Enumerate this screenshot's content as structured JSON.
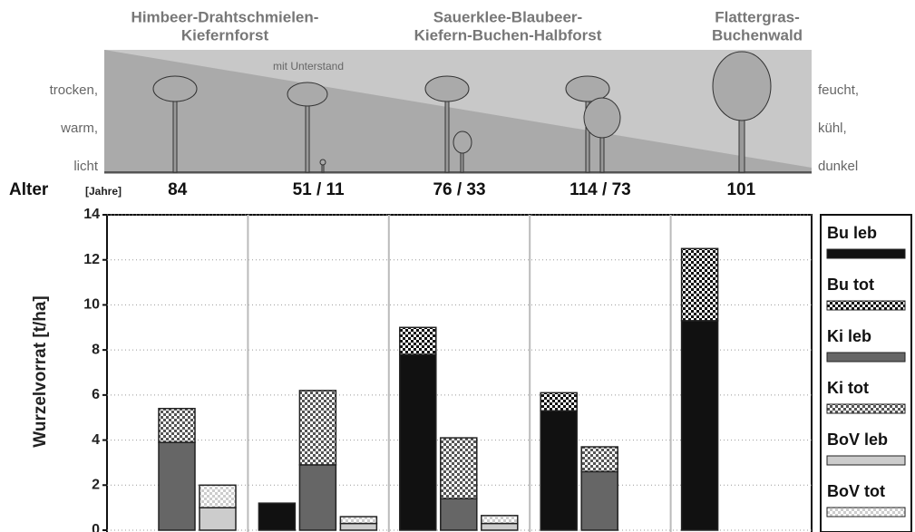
{
  "chart_data": {
    "type": "stacked-group-bar",
    "header": {
      "stands": [
        [
          "Himbeer-Drahtschmielen-",
          "Kiefernforst"
        ],
        [
          "Sauerklee-Blaubeer-",
          "Kiefern-Buchen-Halbforst"
        ],
        [
          "Flattergras-",
          "Buchenwald"
        ]
      ],
      "left_labels": [
        "trocken,",
        "warm,",
        "licht"
      ],
      "right_labels": [
        "feucht,",
        "kühl,",
        "dunkel"
      ],
      "annotation": "mit Unterstand",
      "age_label": "Alter",
      "age_unit": "[Jahre]"
    },
    "y_label": "Wurzelvorrat [t/ha]",
    "categories": [
      "84",
      "51 / 11",
      "76 / 33",
      "114 / 73",
      "101"
    ],
    "series": [
      {
        "name": "Bu leb",
        "color": "#111111",
        "values": [
          null,
          1.2,
          7.8,
          5.3,
          9.3
        ]
      },
      {
        "name": "Bu tot",
        "color": "#111111",
        "pattern": "checker",
        "values": [
          null,
          null,
          1.2,
          0.8,
          3.2
        ]
      },
      {
        "name": "Ki leb",
        "color": "#666666",
        "values": [
          3.9,
          2.9,
          1.4,
          2.6,
          null
        ]
      },
      {
        "name": "Ki tot",
        "color": "#555555",
        "pattern": "checker",
        "values": [
          1.5,
          3.3,
          2.7,
          1.1,
          null
        ]
      },
      {
        "name": "BoV leb",
        "color": "#cccccc",
        "values": [
          1.0,
          0.3,
          0.3,
          null,
          null
        ]
      },
      {
        "name": "BoV tot",
        "color": "#cccccc",
        "pattern": "checker",
        "values": [
          1.0,
          0.3,
          0.35,
          null,
          null
        ]
      }
    ],
    "ylim": [
      0,
      14
    ],
    "yticks": [
      0,
      2,
      4,
      6,
      8,
      10,
      12,
      14
    ],
    "grid": true
  }
}
